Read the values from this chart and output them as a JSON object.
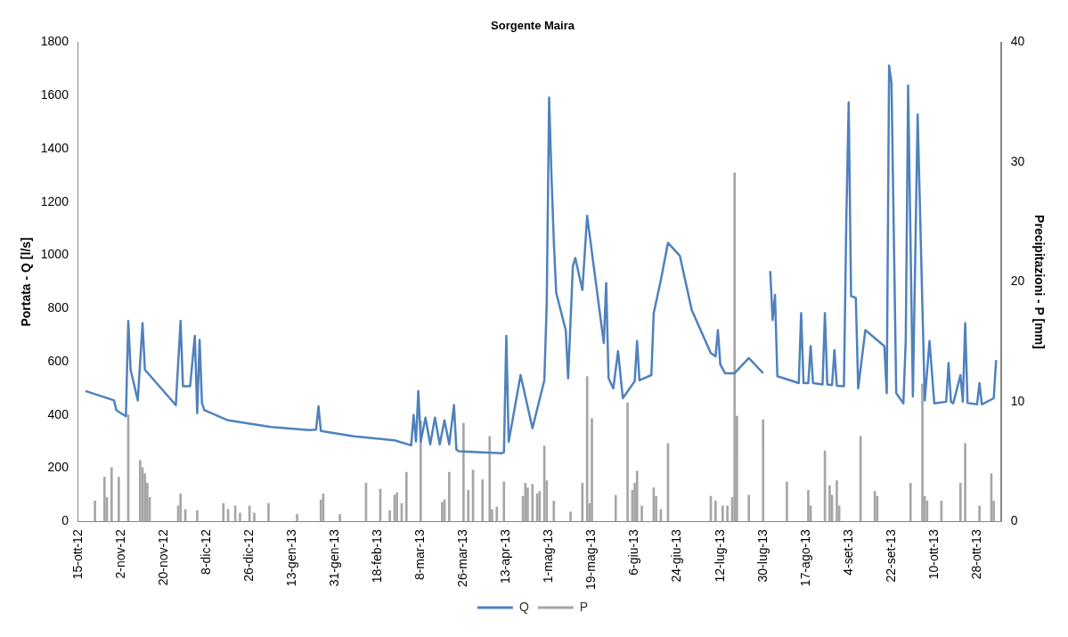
{
  "chart_data": {
    "type": "line",
    "title": "Sorgente Maira",
    "ylabel": "Portata - Q [l/s]",
    "y2label": "Precipitazioni - P [mm]",
    "xlim": [
      "2012-10-15",
      "2013-11-07"
    ],
    "xticks": [
      {
        "value": "2012-10-15",
        "label": "15-ott-12"
      },
      {
        "value": "2012-11-02",
        "label": "2-nov-12"
      },
      {
        "value": "2012-11-20",
        "label": "20-nov-12"
      },
      {
        "value": "2012-12-08",
        "label": "8-dic-12"
      },
      {
        "value": "2012-12-26",
        "label": "26-dic-12"
      },
      {
        "value": "2013-01-13",
        "label": "13-gen-13"
      },
      {
        "value": "2013-01-31",
        "label": "31-gen-13"
      },
      {
        "value": "2013-02-18",
        "label": "18-feb-13"
      },
      {
        "value": "2013-03-08",
        "label": "8-mar-13"
      },
      {
        "value": "2013-03-26",
        "label": "26-mar-13"
      },
      {
        "value": "2013-04-13",
        "label": "13-apr-13"
      },
      {
        "value": "2013-05-01",
        "label": "1-mag-13"
      },
      {
        "value": "2013-05-19",
        "label": "19-mag-13"
      },
      {
        "value": "2013-06-06",
        "label": "6-giu-13"
      },
      {
        "value": "2013-06-24",
        "label": "24-giu-13"
      },
      {
        "value": "2013-07-12",
        "label": "12-lug-13"
      },
      {
        "value": "2013-07-30",
        "label": "30-lug-13"
      },
      {
        "value": "2013-08-17",
        "label": "17-ago-13"
      },
      {
        "value": "2013-09-04",
        "label": "4-set-13"
      },
      {
        "value": "2013-09-22",
        "label": "22-set-13"
      },
      {
        "value": "2013-10-10",
        "label": "10-ott-13"
      },
      {
        "value": "2013-10-28",
        "label": "28-ott-13"
      }
    ],
    "ylim": [
      0,
      1800
    ],
    "yticks": [
      0,
      200,
      400,
      600,
      800,
      1000,
      1200,
      1400,
      1600,
      1800
    ],
    "y2lim": [
      0,
      40
    ],
    "y2ticks": [
      0,
      10,
      20,
      30,
      40
    ],
    "legend": "bottom",
    "series": [
      {
        "name": "Q",
        "color": "#4f81bd",
        "x": [
          "2012-10-18",
          "2012-10-30",
          "2012-10-31",
          "2012-11-04",
          "2012-11-05",
          "2012-11-06",
          "2012-11-09",
          "2012-11-11",
          "2012-11-12",
          "2012-11-25",
          "2012-11-27",
          "2012-11-28",
          "2012-12-01",
          "2012-12-03",
          "2012-12-04",
          "2012-12-05",
          "2012-12-06",
          "2012-12-07",
          "2012-12-17",
          "2013-01-04",
          "2013-01-20",
          "2013-01-23",
          "2013-01-24",
          "2013-01-25",
          "2013-02-08",
          "2013-02-25",
          "2013-03-04",
          "2013-03-05",
          "2013-03-06",
          "2013-03-07",
          "2013-03-08",
          "2013-03-10",
          "2013-03-12",
          "2013-03-14",
          "2013-03-16",
          "2013-03-18",
          "2013-03-20",
          "2013-03-22",
          "2013-03-23",
          "2013-03-24",
          "2013-04-11",
          "2013-04-12",
          "2013-04-13",
          "2013-04-14",
          "2013-04-19",
          "2013-04-24",
          "2013-04-29",
          "2013-04-30",
          "2013-05-01",
          "2013-05-02",
          "2013-05-03",
          "2013-05-04",
          "2013-05-08",
          "2013-05-09",
          "2013-05-11",
          "2013-05-12",
          "2013-05-15",
          "2013-05-17",
          "2013-05-24",
          "2013-05-25",
          "2013-05-26",
          "2013-05-28",
          "2013-05-30",
          "2013-06-01",
          "2013-06-06",
          "2013-06-07",
          "2013-06-08",
          "2013-06-13",
          "2013-06-14",
          "2013-06-17",
          "2013-06-20",
          "2013-06-25",
          "2013-06-30",
          "2013-07-08",
          "2013-07-10",
          "2013-07-11",
          "2013-07-12",
          "2013-07-14",
          "2013-07-18",
          "2013-07-24",
          "2013-07-30",
          "2013-08-01",
          "2013-08-02",
          "2013-08-03",
          "2013-08-04",
          "2013-08-05",
          "2013-08-14",
          "2013-08-15",
          "2013-08-16",
          "2013-08-18",
          "2013-08-19",
          "2013-08-20",
          "2013-08-24",
          "2013-08-25",
          "2013-08-26",
          "2013-08-28",
          "2013-08-29",
          "2013-08-30",
          "2013-09-02",
          "2013-09-03",
          "2013-09-04",
          "2013-09-05",
          "2013-09-07",
          "2013-09-08",
          "2013-09-11",
          "2013-09-19",
          "2013-09-20",
          "2013-09-21",
          "2013-09-22",
          "2013-09-24",
          "2013-09-27",
          "2013-09-28",
          "2013-09-29",
          "2013-10-01",
          "2013-10-03",
          "2013-10-05",
          "2013-10-06",
          "2013-10-08",
          "2013-10-10",
          "2013-10-15",
          "2013-10-16",
          "2013-10-17",
          "2013-10-18",
          "2013-10-21",
          "2013-10-22",
          "2013-10-23",
          "2013-10-24",
          "2013-10-28",
          "2013-10-29",
          "2013-10-30",
          "2013-10-31",
          "2013-11-04",
          "2013-11-05"
        ],
        "values": [
          490,
          455,
          418,
          395,
          753,
          569,
          455,
          745,
          570,
          437,
          753,
          508,
          508,
          697,
          407,
          682,
          444,
          418,
          380,
          355,
          343,
          345,
          433,
          340,
          320,
          305,
          286,
          400,
          300,
          490,
          300,
          390,
          290,
          390,
          290,
          380,
          290,
          437,
          270,
          264,
          256,
          260,
          697,
          300,
          550,
          350,
          531,
          820,
          1593,
          1299,
          1047,
          858,
          719,
          538,
          960,
          990,
          870,
          1148,
          670,
          896,
          538,
          500,
          640,
          463,
          527,
          678,
          530,
          550,
          783,
          907,
          1047,
          998,
          794,
          633,
          620,
          719,
          590,
          557,
          557,
          614,
          557,
          null,
          941,
          757,
          851,
          546,
          520,
          783,
          520,
          520,
          659,
          520,
          515,
          783,
          515,
          512,
          644,
          510,
          508,
          1133,
          1574,
          847,
          840,
          500,
          719,
          659,
          482,
          1713,
          1649,
          482,
          444,
          681,
          1638,
          470,
          1529,
          809,
          455,
          678,
          444,
          450,
          595,
          450,
          444,
          550,
          450,
          745,
          445,
          440,
          520,
          440,
          444,
          463,
          606
        ]
      },
      {
        "name": "P",
        "type": "bar",
        "axis": "y2",
        "color": "#a6a6a6",
        "x": [
          "2012-10-22",
          "2012-10-26",
          "2012-10-27",
          "2012-10-29",
          "2012-11-01",
          "2012-11-05",
          "2012-11-10",
          "2012-11-11",
          "2012-11-12",
          "2012-11-13",
          "2012-11-14",
          "2012-11-26",
          "2012-11-27",
          "2012-11-29",
          "2012-12-04",
          "2012-12-15",
          "2012-12-17",
          "2012-12-20",
          "2012-12-22",
          "2012-12-26",
          "2012-12-28",
          "2013-01-03",
          "2013-01-15",
          "2013-01-25",
          "2013-01-26",
          "2013-02-02",
          "2013-02-13",
          "2013-02-19",
          "2013-02-23",
          "2013-02-25",
          "2013-02-26",
          "2013-02-28",
          "2013-03-02",
          "2013-03-08",
          "2013-03-17",
          "2013-03-18",
          "2013-03-20",
          "2013-03-26",
          "2013-03-28",
          "2013-03-30",
          "2013-04-03",
          "2013-04-06",
          "2013-04-07",
          "2013-04-09",
          "2013-04-12",
          "2013-04-20",
          "2013-04-21",
          "2013-04-22",
          "2013-04-24",
          "2013-04-26",
          "2013-04-27",
          "2013-04-29",
          "2013-04-30",
          "2013-05-03",
          "2013-05-10",
          "2013-05-15",
          "2013-05-17",
          "2013-05-18",
          "2013-05-19",
          "2013-05-29",
          "2013-06-03",
          "2013-06-05",
          "2013-06-06",
          "2013-06-07",
          "2013-06-09",
          "2013-06-14",
          "2013-06-15",
          "2013-06-17",
          "2013-06-20",
          "2013-07-08",
          "2013-07-10",
          "2013-07-13",
          "2013-07-15",
          "2013-07-17",
          "2013-07-18",
          "2013-07-19",
          "2013-07-24",
          "2013-07-30",
          "2013-08-09",
          "2013-08-18",
          "2013-08-19",
          "2013-08-25",
          "2013-08-27",
          "2013-08-28",
          "2013-08-30",
          "2013-08-31",
          "2013-09-09",
          "2013-09-15",
          "2013-09-16",
          "2013-09-30",
          "2013-10-05",
          "2013-10-06",
          "2013-10-07",
          "2013-10-13",
          "2013-10-21",
          "2013-10-23",
          "2013-10-29",
          "2013-11-03",
          "2013-11-04"
        ],
        "values": [
          1.7,
          3.7,
          2,
          4.5,
          3.7,
          8.9,
          5.1,
          4.5,
          4,
          3.2,
          2,
          1.3,
          2.3,
          1,
          0.9,
          1.5,
          1,
          1.3,
          0.7,
          1.3,
          0.7,
          1.5,
          0.6,
          1.8,
          2.3,
          0.6,
          3.2,
          2.7,
          0.9,
          2.2,
          2.4,
          1.5,
          4.1,
          8.4,
          1.6,
          1.8,
          4.1,
          8.2,
          2.6,
          4.3,
          3.5,
          7.1,
          1,
          1.2,
          3.3,
          2.1,
          3.2,
          2.8,
          3.1,
          2.3,
          2.5,
          6.3,
          3.4,
          1.7,
          0.8,
          3.2,
          12.1,
          1.5,
          8.6,
          2.2,
          9.9,
          2.6,
          3.2,
          4.2,
          1.3,
          2.8,
          2.1,
          1,
          6.5,
          2.1,
          1.7,
          1.3,
          1.3,
          2,
          29.1,
          8.8,
          2.2,
          8.5,
          3.3,
          2.6,
          1.3,
          5.9,
          3,
          2.2,
          3.4,
          1.3,
          7.1,
          2.5,
          2.1,
          3.2,
          11.5,
          2.1,
          1.7,
          1.7,
          3.2,
          6.5,
          1.3,
          4,
          1.7
        ]
      }
    ]
  }
}
